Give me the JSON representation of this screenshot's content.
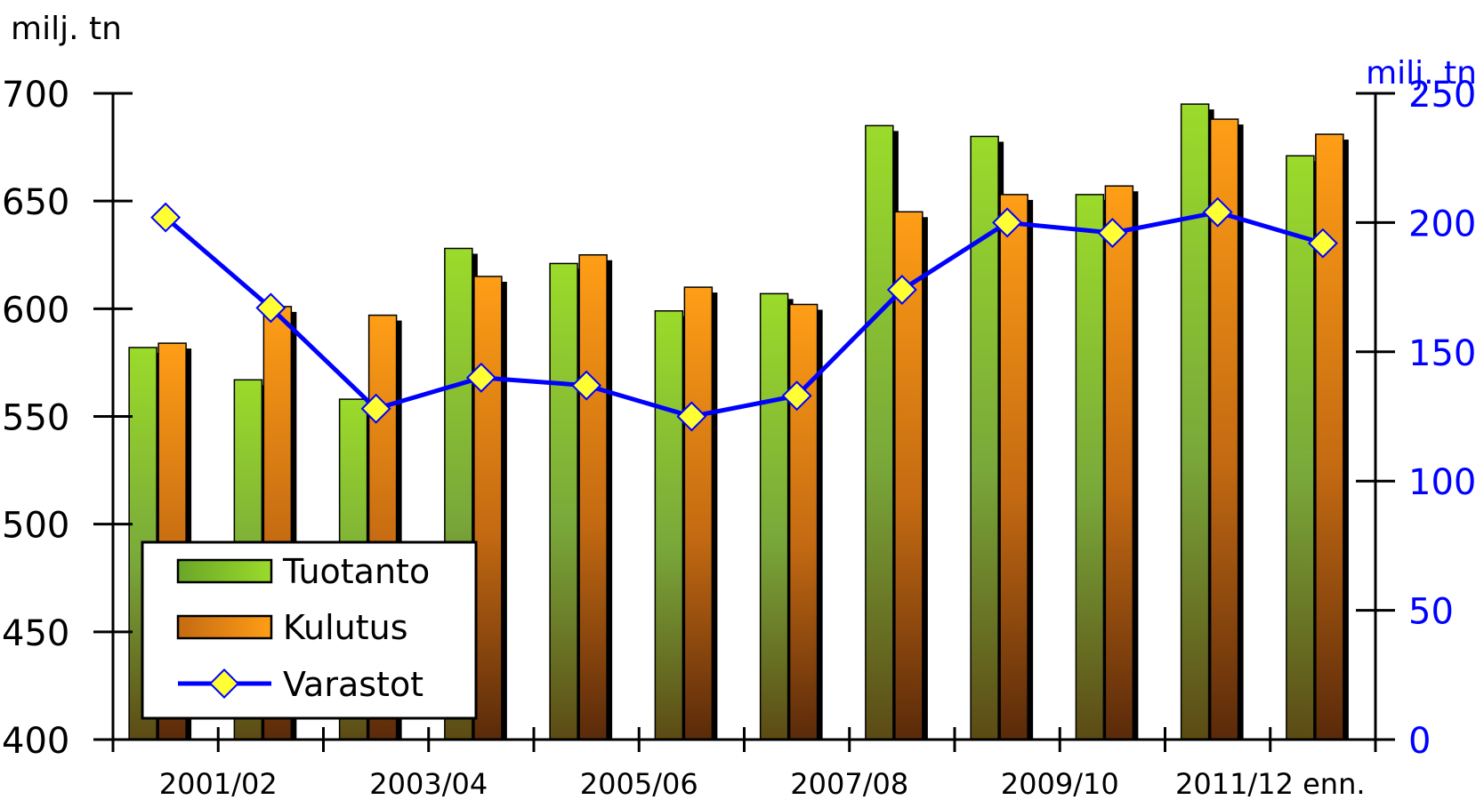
{
  "chart_data": {
    "type": "bar",
    "categories": [
      "2001/02",
      "",
      "2003/04",
      "",
      "2005/06",
      "",
      "2007/08",
      "",
      "2009/10",
      "",
      "2011/12 enn.",
      ""
    ],
    "series": [
      {
        "name": "Tuotanto",
        "type": "bar",
        "axis": "left",
        "values": [
          582,
          567,
          558,
          628,
          621,
          599,
          607,
          685,
          680,
          653,
          695,
          671
        ]
      },
      {
        "name": "Kulutus",
        "type": "bar",
        "axis": "left",
        "values": [
          584,
          601,
          597,
          615,
          625,
          610,
          602,
          645,
          653,
          657,
          688,
          681
        ]
      },
      {
        "name": "Varastot",
        "type": "line",
        "axis": "right",
        "values": [
          202,
          167,
          128,
          140,
          137,
          125,
          133,
          174,
          200,
          196,
          204,
          192
        ]
      }
    ],
    "y_left": {
      "label": "milj. tn",
      "min": 400,
      "max": 700,
      "ticks": [
        400,
        450,
        500,
        550,
        600,
        650,
        700
      ]
    },
    "y_right": {
      "label": "milj. tn",
      "min": 0,
      "max": 250,
      "ticks": [
        0,
        50,
        100,
        150,
        200,
        250
      ]
    },
    "legend_position": "bottom-left",
    "grid": false
  },
  "colors": {
    "tuotanto": "#8cc63f",
    "kulutus": "#f7941d",
    "varastot_line": "#0000ff",
    "varastot_marker": "#ffff33",
    "right_axis_text": "#0000ff"
  }
}
